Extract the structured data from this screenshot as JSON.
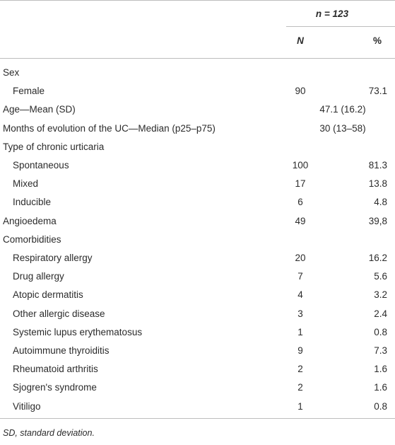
{
  "table": {
    "header": {
      "group": "n = 123",
      "columns": [
        "N",
        "%"
      ]
    },
    "rows": [
      {
        "label": "Sex",
        "items": [
          {
            "label": "Female",
            "n": 90,
            "pct": 73.1
          }
        ]
      },
      {
        "label": "Age—Mean (SD)",
        "value": "47.1 (16.2)"
      },
      {
        "label": "Months of evolution of the UC—Median (p25–p75)",
        "value": "30 (13–58)"
      },
      {
        "label": "Type of chronic urticaria",
        "items": [
          {
            "label": "Spontaneous",
            "n": 100,
            "pct": 81.3
          },
          {
            "label": "Mixed",
            "n": 17,
            "pct": 13.8
          },
          {
            "label": "Inducible",
            "n": 6,
            "pct": 4.8
          }
        ]
      },
      {
        "label": "Angioedema",
        "n": 49,
        "pct": "39,8"
      },
      {
        "label": "Comorbidities",
        "items": [
          {
            "label": "Respiratory allergy",
            "n": 20,
            "pct": 16.2
          },
          {
            "label": "Drug allergy",
            "n": 7,
            "pct": 5.6
          },
          {
            "label": "Atopic dermatitis",
            "n": 4,
            "pct": 3.2
          },
          {
            "label": "Other allergic disease",
            "n": 3,
            "pct": 2.4
          },
          {
            "label": "Systemic lupus erythematosus",
            "n": 1,
            "pct": 0.8
          },
          {
            "label": "Autoimmune thyroiditis",
            "n": 9,
            "pct": 7.3
          },
          {
            "label": "Rheumatoid arthritis",
            "n": 2,
            "pct": 1.6
          },
          {
            "label": "Sjogren's syndrome",
            "n": 2,
            "pct": 1.6
          },
          {
            "label": "Vitiligo",
            "n": 1,
            "pct": 0.8
          }
        ]
      }
    ],
    "footnote": "SD, standard deviation."
  }
}
